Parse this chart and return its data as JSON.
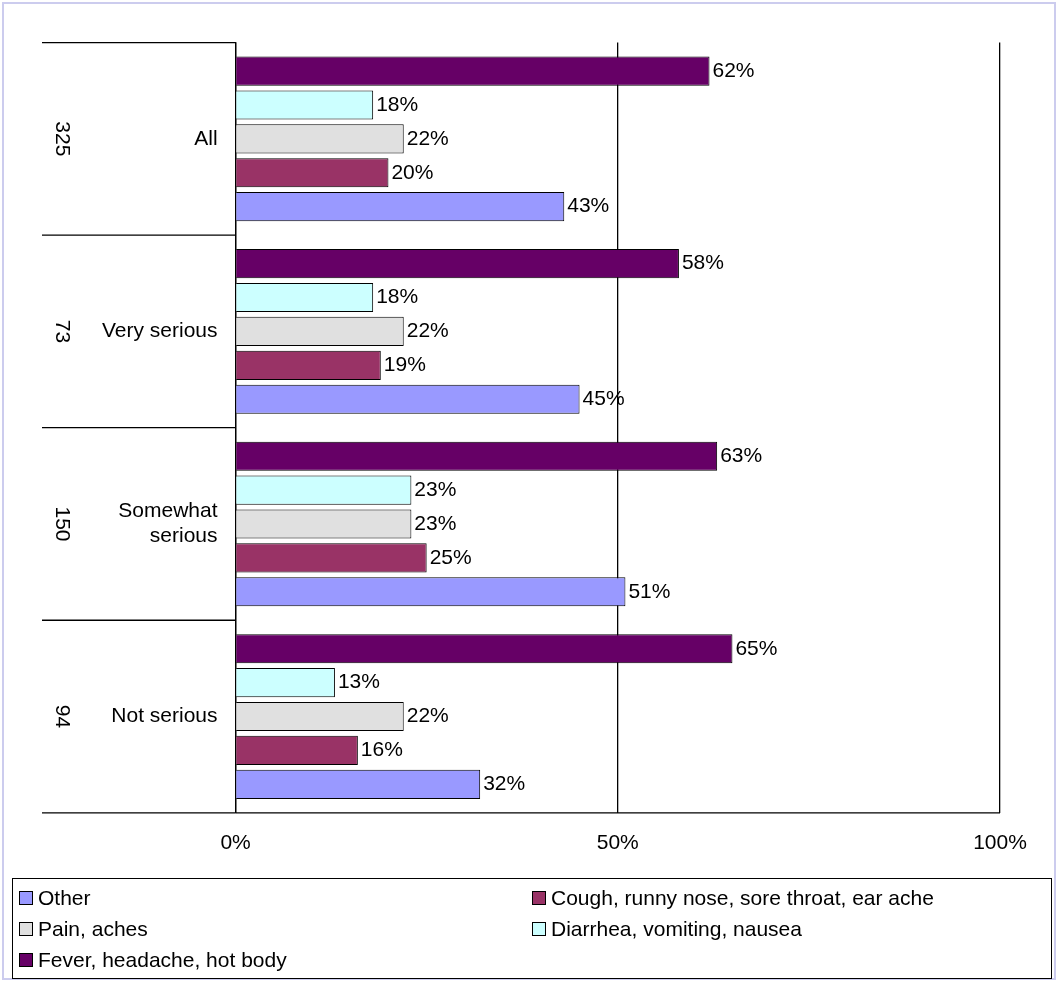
{
  "chart_data": {
    "type": "bar",
    "orientation": "horizontal",
    "categories": [
      "All",
      "Very serious",
      "Somewhat serious",
      "Not serious"
    ],
    "series": [
      {
        "name": "Other",
        "color": "#9999ff",
        "values": [
          43,
          45,
          51,
          32
        ],
        "value_labels": [
          "43%",
          "45%",
          "51%",
          "32%"
        ]
      },
      {
        "name": "Cough, runny nose, sore throat, ear ache",
        "color": "#993366",
        "values": [
          20,
          19,
          25,
          16
        ],
        "value_labels": [
          "20%",
          "19%",
          "25%",
          "16%"
        ]
      },
      {
        "name": "Pain, aches",
        "color": "#e0e0e0",
        "values": [
          22,
          22,
          23,
          22
        ],
        "value_labels": [
          "22%",
          "22%",
          "23%",
          "22%"
        ]
      },
      {
        "name": "Diarrhea, vomiting, nausea",
        "color": "#ccffff",
        "values": [
          18,
          18,
          23,
          13
        ],
        "value_labels": [
          "18%",
          "18%",
          "23%",
          "13%"
        ]
      },
      {
        "name": "Fever, headache, hot body",
        "color": "#660066",
        "values": [
          62,
          58,
          63,
          65
        ],
        "value_labels": [
          "62%",
          "58%",
          "63%",
          "65%"
        ]
      }
    ],
    "xlim": [
      0,
      100
    ],
    "xticks": [
      {
        "value": 0,
        "label": "0%"
      },
      {
        "value": 50,
        "label": "50%"
      },
      {
        "value": 100,
        "label": "100%"
      }
    ],
    "grid": "x",
    "legend": "bottom",
    "annotations": [
      "325",
      "73",
      "150",
      "94"
    ]
  }
}
